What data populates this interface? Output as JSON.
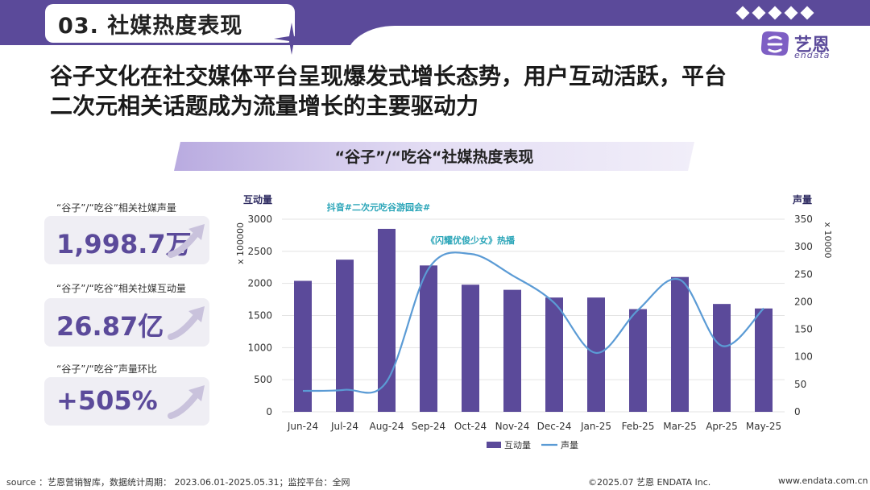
{
  "header": {
    "section_title": "03. 社媒热度表现",
    "logo_cn": "艺恩",
    "logo_en": "endata"
  },
  "headline": {
    "line1": "谷子文化在社交媒体平台呈现爆发式增长态势，用户互动活跃，平台",
    "line2": "二次元相关话题成为流量增长的主要驱动力"
  },
  "banner": {
    "title": "“谷子”/“吃谷“社媒热度表现"
  },
  "kpis": [
    {
      "label": "“谷子”/“吃谷”相关社媒声量",
      "value": "1,998.7万"
    },
    {
      "label": "“谷子”/“吃谷”相关社媒互动量",
      "value": "26.87亿"
    },
    {
      "label": "“谷子”/“吃谷”声量环比",
      "value": "+505%"
    }
  ],
  "chart_data": {
    "type": "bar",
    "categories": [
      "Jun-24",
      "Jul-24",
      "Aug-24",
      "Sep-24",
      "Oct-24",
      "Nov-24",
      "Dec-24",
      "Jan-25",
      "Feb-25",
      "Mar-25",
      "Apr-25",
      "May-25"
    ],
    "series": [
      {
        "name": "互动量",
        "type": "bar",
        "axis": "left",
        "values": [
          2040,
          2370,
          2850,
          2280,
          1980,
          1900,
          1780,
          1780,
          1600,
          2100,
          1680,
          1610
        ]
      },
      {
        "name": "声量",
        "type": "line",
        "axis": "right",
        "values": [
          38,
          40,
          55,
          260,
          287,
          248,
          198,
          107,
          185,
          240,
          120,
          188
        ]
      }
    ],
    "y_left": {
      "label": "互动量",
      "unit": "x 100000",
      "lim": [
        0,
        3000
      ],
      "ticks": [
        0,
        500,
        1000,
        1500,
        2000,
        2500,
        3000
      ]
    },
    "y_right": {
      "label": "声量",
      "unit": "x 10000",
      "lim": [
        0,
        350
      ],
      "ticks": [
        0,
        50,
        100,
        150,
        200,
        250,
        300,
        350
      ]
    },
    "annotations": [
      {
        "text": "抖音#二次元吃谷游园会#",
        "x": "Aug-24"
      },
      {
        "text": "《闪耀优俊少女》热播",
        "x": "Oct-24"
      }
    ],
    "legend": "bottom-center",
    "grid": true,
    "colors": {
      "bar": "#5b4a9a",
      "line": "#5b9bd5"
    }
  },
  "footer": {
    "source": "source ：艺恩营销智库，数据统计周期： 2023.06.01-2025.05.31；监控平台：全网",
    "copyright": "©2025.07  艺恩 ENDATA Inc.",
    "website": "www.endata.com.cn"
  }
}
